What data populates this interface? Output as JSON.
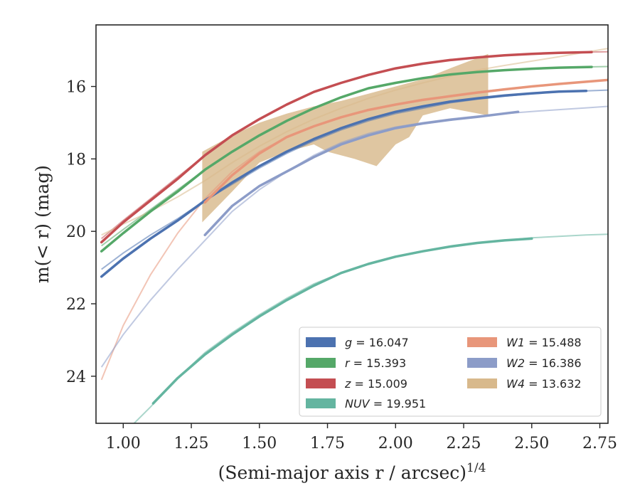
{
  "chart_data": {
    "type": "line",
    "xlabel": "(Semi-major axis r / arcsec)",
    "xlabel_sup": "1/4",
    "ylabel": "m(< r) (mag)",
    "xlim": [
      0.9,
      2.78
    ],
    "ylim": [
      25.3,
      14.3
    ],
    "y_inverted": true,
    "x_ticks": [
      1.0,
      1.25,
      1.5,
      1.75,
      2.0,
      2.25,
      2.5,
      2.75
    ],
    "x_tick_labels": [
      "1.00",
      "1.25",
      "1.50",
      "1.75",
      "2.00",
      "2.25",
      "2.50",
      "2.75"
    ],
    "y_ticks": [
      16,
      18,
      20,
      22,
      24
    ],
    "y_tick_labels": [
      "16",
      "18",
      "20",
      "22",
      "24"
    ],
    "grid": false,
    "legend_position": "lower-right",
    "legend_columns": 2,
    "series": [
      {
        "name": "g = 16.047",
        "band": "g",
        "value": "16.047",
        "color": "#4c72b0",
        "model": [
          [
            0.92,
            21.05
          ],
          [
            1.0,
            20.6
          ],
          [
            1.1,
            20.1
          ],
          [
            1.2,
            19.65
          ],
          [
            1.3,
            19.15
          ],
          [
            1.4,
            18.7
          ],
          [
            1.5,
            18.25
          ],
          [
            1.6,
            17.85
          ],
          [
            1.7,
            17.5
          ],
          [
            1.8,
            17.2
          ],
          [
            1.9,
            16.95
          ],
          [
            2.0,
            16.75
          ],
          [
            2.1,
            16.6
          ],
          [
            2.2,
            16.45
          ],
          [
            2.3,
            16.35
          ],
          [
            2.4,
            16.27
          ],
          [
            2.5,
            16.2
          ],
          [
            2.6,
            16.15
          ],
          [
            2.7,
            16.12
          ],
          [
            2.78,
            16.1
          ]
        ],
        "data": [
          [
            0.92,
            21.25
          ],
          [
            1.0,
            20.75
          ],
          [
            1.1,
            20.2
          ],
          [
            1.2,
            19.7
          ],
          [
            1.3,
            19.15
          ],
          [
            1.4,
            18.65
          ],
          [
            1.5,
            18.2
          ],
          [
            1.6,
            17.8
          ],
          [
            1.7,
            17.45
          ],
          [
            1.8,
            17.15
          ],
          [
            1.9,
            16.9
          ],
          [
            2.0,
            16.7
          ],
          [
            2.1,
            16.55
          ],
          [
            2.2,
            16.42
          ],
          [
            2.3,
            16.33
          ],
          [
            2.4,
            16.25
          ],
          [
            2.5,
            16.19
          ],
          [
            2.6,
            16.14
          ],
          [
            2.7,
            16.12
          ]
        ]
      },
      {
        "name": "r = 15.393",
        "band": "r",
        "value": "15.393",
        "color": "#55a868",
        "model": [
          [
            0.92,
            20.4
          ],
          [
            1.0,
            19.95
          ],
          [
            1.1,
            19.4
          ],
          [
            1.2,
            18.85
          ],
          [
            1.3,
            18.3
          ],
          [
            1.4,
            17.8
          ],
          [
            1.5,
            17.35
          ],
          [
            1.6,
            16.95
          ],
          [
            1.7,
            16.6
          ],
          [
            1.8,
            16.3
          ],
          [
            1.9,
            16.05
          ],
          [
            2.0,
            15.9
          ],
          [
            2.1,
            15.77
          ],
          [
            2.2,
            15.67
          ],
          [
            2.3,
            15.6
          ],
          [
            2.4,
            15.55
          ],
          [
            2.5,
            15.51
          ],
          [
            2.6,
            15.48
          ],
          [
            2.7,
            15.46
          ],
          [
            2.78,
            15.45
          ]
        ],
        "data": [
          [
            0.92,
            20.55
          ],
          [
            1.0,
            20.05
          ],
          [
            1.1,
            19.45
          ],
          [
            1.2,
            18.9
          ],
          [
            1.3,
            18.3
          ],
          [
            1.4,
            17.8
          ],
          [
            1.5,
            17.35
          ],
          [
            1.6,
            16.95
          ],
          [
            1.7,
            16.6
          ],
          [
            1.8,
            16.3
          ],
          [
            1.9,
            16.05
          ],
          [
            2.0,
            15.9
          ],
          [
            2.1,
            15.77
          ],
          [
            2.2,
            15.67
          ],
          [
            2.3,
            15.6
          ],
          [
            2.4,
            15.55
          ],
          [
            2.5,
            15.51
          ],
          [
            2.6,
            15.48
          ],
          [
            2.72,
            15.46
          ]
        ]
      },
      {
        "name": "z = 15.009",
        "band": "z",
        "value": "15.009",
        "color": "#c44e52",
        "model": [
          [
            0.92,
            20.2
          ],
          [
            1.0,
            19.7
          ],
          [
            1.1,
            19.1
          ],
          [
            1.2,
            18.5
          ],
          [
            1.3,
            17.9
          ],
          [
            1.4,
            17.35
          ],
          [
            1.5,
            16.9
          ],
          [
            1.6,
            16.5
          ],
          [
            1.7,
            16.15
          ],
          [
            1.8,
            15.9
          ],
          [
            1.9,
            15.68
          ],
          [
            2.0,
            15.5
          ],
          [
            2.1,
            15.37
          ],
          [
            2.2,
            15.27
          ],
          [
            2.3,
            15.2
          ],
          [
            2.4,
            15.14
          ],
          [
            2.5,
            15.1
          ],
          [
            2.6,
            15.07
          ],
          [
            2.7,
            15.05
          ],
          [
            2.78,
            15.04
          ]
        ],
        "data": [
          [
            0.92,
            20.3
          ],
          [
            1.0,
            19.75
          ],
          [
            1.1,
            19.15
          ],
          [
            1.2,
            18.55
          ],
          [
            1.3,
            17.9
          ],
          [
            1.4,
            17.35
          ],
          [
            1.5,
            16.9
          ],
          [
            1.6,
            16.5
          ],
          [
            1.7,
            16.15
          ],
          [
            1.8,
            15.9
          ],
          [
            1.9,
            15.68
          ],
          [
            2.0,
            15.5
          ],
          [
            2.1,
            15.37
          ],
          [
            2.2,
            15.27
          ],
          [
            2.3,
            15.2
          ],
          [
            2.4,
            15.14
          ],
          [
            2.5,
            15.1
          ],
          [
            2.6,
            15.07
          ],
          [
            2.72,
            15.05
          ]
        ]
      },
      {
        "name": "NUV = 19.951",
        "band": "NUV",
        "value": "19.951",
        "color": "#64b5a0",
        "model": [
          [
            1.04,
            25.3
          ],
          [
            1.1,
            24.85
          ],
          [
            1.2,
            24.05
          ],
          [
            1.3,
            23.35
          ],
          [
            1.4,
            22.8
          ],
          [
            1.5,
            22.3
          ],
          [
            1.6,
            21.85
          ],
          [
            1.7,
            21.45
          ],
          [
            1.8,
            21.15
          ],
          [
            1.9,
            20.9
          ],
          [
            2.0,
            20.7
          ],
          [
            2.1,
            20.55
          ],
          [
            2.2,
            20.42
          ],
          [
            2.3,
            20.32
          ],
          [
            2.4,
            20.25
          ],
          [
            2.5,
            20.18
          ],
          [
            2.6,
            20.14
          ],
          [
            2.7,
            20.1
          ],
          [
            2.78,
            20.08
          ]
        ],
        "data": [
          [
            1.11,
            24.75
          ],
          [
            1.2,
            24.05
          ],
          [
            1.3,
            23.4
          ],
          [
            1.4,
            22.85
          ],
          [
            1.5,
            22.35
          ],
          [
            1.6,
            21.9
          ],
          [
            1.7,
            21.5
          ],
          [
            1.8,
            21.15
          ],
          [
            1.9,
            20.9
          ],
          [
            2.0,
            20.7
          ],
          [
            2.1,
            20.55
          ],
          [
            2.2,
            20.42
          ],
          [
            2.3,
            20.32
          ],
          [
            2.4,
            20.25
          ],
          [
            2.5,
            20.2
          ]
        ]
      },
      {
        "name": "W1 = 15.488",
        "band": "W1",
        "value": "15.488",
        "color": "#e8967a",
        "model": [
          [
            0.92,
            24.1
          ],
          [
            1.0,
            22.6
          ],
          [
            1.1,
            21.2
          ],
          [
            1.2,
            20.05
          ],
          [
            1.3,
            19.1
          ],
          [
            1.4,
            18.35
          ],
          [
            1.5,
            17.8
          ],
          [
            1.6,
            17.4
          ],
          [
            1.7,
            17.1
          ],
          [
            1.8,
            16.85
          ],
          [
            1.9,
            16.65
          ],
          [
            2.0,
            16.5
          ],
          [
            2.1,
            16.37
          ],
          [
            2.2,
            16.25
          ],
          [
            2.3,
            16.15
          ],
          [
            2.4,
            16.07
          ],
          [
            2.5,
            15.99
          ],
          [
            2.6,
            15.93
          ],
          [
            2.7,
            15.87
          ],
          [
            2.78,
            15.82
          ]
        ],
        "data": [
          [
            1.3,
            19.2
          ],
          [
            1.4,
            18.45
          ],
          [
            1.5,
            17.85
          ],
          [
            1.6,
            17.4
          ],
          [
            1.7,
            17.1
          ],
          [
            1.8,
            16.85
          ],
          [
            1.9,
            16.65
          ],
          [
            2.0,
            16.5
          ],
          [
            2.1,
            16.37
          ],
          [
            2.2,
            16.27
          ],
          [
            2.3,
            16.17
          ],
          [
            2.4,
            16.08
          ],
          [
            2.5,
            16.0
          ],
          [
            2.6,
            15.93
          ],
          [
            2.7,
            15.87
          ],
          [
            2.78,
            15.82
          ]
        ]
      },
      {
        "name": "W2 = 16.386",
        "band": "W2",
        "value": "16.386",
        "color": "#8c9cc8",
        "model": [
          [
            0.92,
            23.75
          ],
          [
            1.0,
            22.85
          ],
          [
            1.1,
            21.9
          ],
          [
            1.2,
            21.05
          ],
          [
            1.3,
            20.25
          ],
          [
            1.4,
            19.45
          ],
          [
            1.5,
            18.85
          ],
          [
            1.6,
            18.35
          ],
          [
            1.7,
            17.9
          ],
          [
            1.8,
            17.55
          ],
          [
            1.9,
            17.3
          ],
          [
            2.0,
            17.12
          ],
          [
            2.1,
            17.0
          ],
          [
            2.2,
            16.9
          ],
          [
            2.3,
            16.82
          ],
          [
            2.4,
            16.75
          ],
          [
            2.5,
            16.69
          ],
          [
            2.6,
            16.64
          ],
          [
            2.7,
            16.59
          ],
          [
            2.78,
            16.55
          ]
        ],
        "data": [
          [
            1.3,
            20.1
          ],
          [
            1.4,
            19.3
          ],
          [
            1.5,
            18.75
          ],
          [
            1.6,
            18.35
          ],
          [
            1.7,
            17.95
          ],
          [
            1.8,
            17.6
          ],
          [
            1.9,
            17.35
          ],
          [
            2.0,
            17.15
          ],
          [
            2.1,
            17.02
          ],
          [
            2.2,
            16.92
          ],
          [
            2.3,
            16.84
          ],
          [
            2.45,
            16.7
          ]
        ]
      },
      {
        "name": "W4 = 13.632",
        "band": "W4",
        "value": "13.632",
        "color": "#d8b98c",
        "model": [
          [
            0.92,
            20.1
          ],
          [
            1.0,
            19.8
          ],
          [
            1.1,
            19.45
          ],
          [
            1.2,
            19.05
          ],
          [
            1.3,
            18.6
          ],
          [
            1.4,
            18.1
          ],
          [
            1.5,
            17.65
          ],
          [
            1.6,
            17.25
          ],
          [
            1.7,
            16.9
          ],
          [
            1.8,
            16.6
          ],
          [
            1.9,
            16.33
          ],
          [
            2.0,
            16.1
          ],
          [
            2.1,
            15.9
          ],
          [
            2.2,
            15.72
          ],
          [
            2.3,
            15.55
          ],
          [
            2.4,
            15.42
          ],
          [
            2.5,
            15.3
          ],
          [
            2.6,
            15.18
          ],
          [
            2.7,
            15.05
          ],
          [
            2.78,
            14.95
          ]
        ],
        "band_upper": [
          [
            1.29,
            17.8
          ],
          [
            1.4,
            17.35
          ],
          [
            1.5,
            17.0
          ],
          [
            1.6,
            16.75
          ],
          [
            1.7,
            16.55
          ],
          [
            1.8,
            16.4
          ],
          [
            1.9,
            16.2
          ],
          [
            2.0,
            16.0
          ],
          [
            2.1,
            15.8
          ],
          [
            2.2,
            15.5
          ],
          [
            2.34,
            15.1
          ]
        ],
        "band_lower": [
          [
            2.34,
            16.8
          ],
          [
            2.2,
            16.6
          ],
          [
            2.1,
            16.8
          ],
          [
            2.05,
            17.4
          ],
          [
            2.0,
            17.6
          ],
          [
            1.93,
            18.2
          ],
          [
            1.85,
            18.0
          ],
          [
            1.75,
            17.8
          ],
          [
            1.7,
            17.6
          ],
          [
            1.6,
            17.8
          ],
          [
            1.5,
            18.1
          ],
          [
            1.4,
            18.9
          ],
          [
            1.29,
            19.75
          ]
        ]
      }
    ]
  }
}
